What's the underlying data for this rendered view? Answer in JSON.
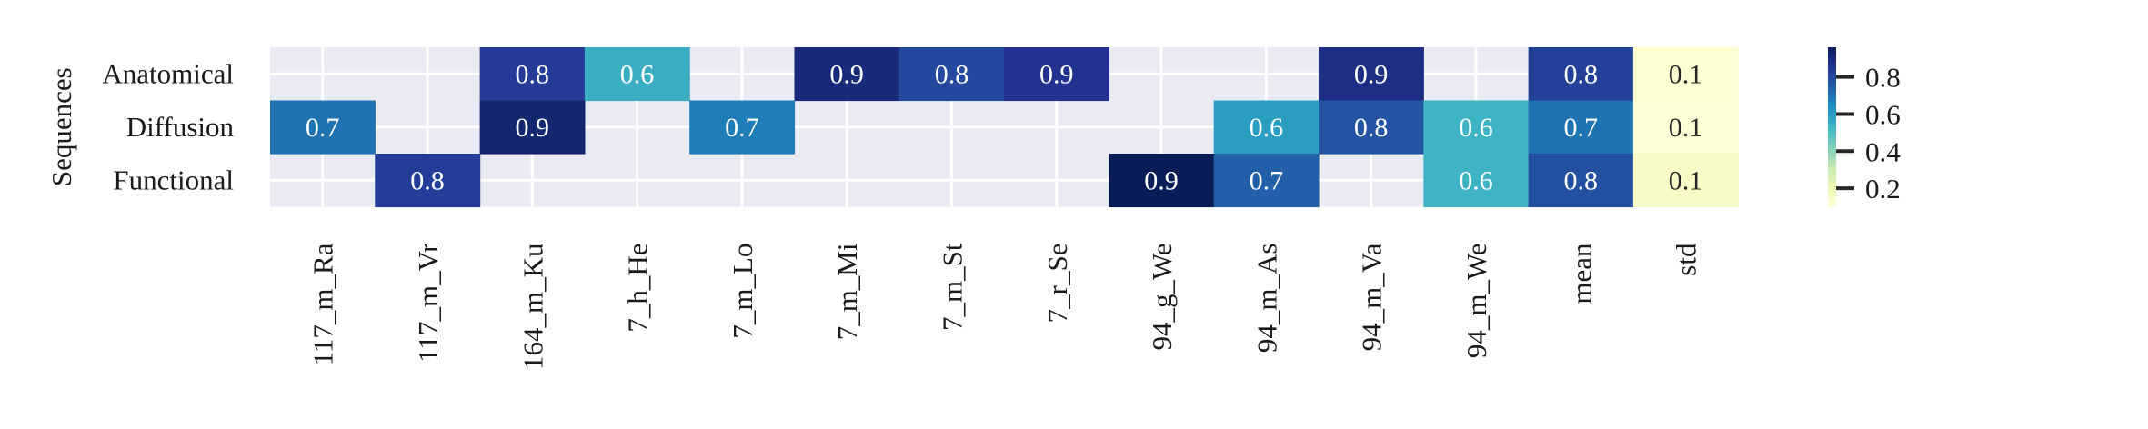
{
  "chart_data": {
    "type": "heatmap",
    "title": "",
    "ylabel": "Sequences",
    "xlabel": "",
    "rows": [
      "Anatomical",
      "Diffusion",
      "Functional"
    ],
    "columns": [
      "117_m_Ra",
      "117_m_Vr",
      "164_m_Ku",
      "7_h_He",
      "7_m_Lo",
      "7_m_Mi",
      "7_m_St",
      "7_r_Se",
      "94_g_We",
      "94_m_As",
      "94_m_Va",
      "94_m_We",
      "mean",
      "std"
    ],
    "values": [
      [
        null,
        null,
        0.8,
        0.6,
        null,
        0.9,
        0.8,
        0.9,
        null,
        null,
        0.9,
        null,
        0.8,
        0.1
      ],
      [
        0.7,
        null,
        0.9,
        null,
        0.7,
        null,
        null,
        null,
        null,
        0.6,
        0.8,
        0.6,
        0.7,
        0.1
      ],
      [
        null,
        0.8,
        null,
        null,
        null,
        null,
        null,
        null,
        0.9,
        0.7,
        null,
        0.6,
        0.8,
        0.1
      ]
    ],
    "underlying_values": [
      [
        null,
        null,
        0.84,
        0.55,
        null,
        0.9,
        0.8,
        0.86,
        null,
        null,
        0.88,
        null,
        0.82,
        0.12
      ],
      [
        0.7,
        null,
        0.92,
        null,
        0.68,
        null,
        null,
        null,
        null,
        0.6,
        0.77,
        0.54,
        0.7,
        0.11
      ],
      [
        null,
        0.83,
        null,
        null,
        null,
        null,
        null,
        null,
        0.96,
        0.74,
        null,
        0.54,
        0.78,
        0.15
      ]
    ],
    "colormap": "YlGnBu",
    "missing_color": "#eaeaf2",
    "grid": true,
    "grid_color": "#ffffff",
    "colorbar": {
      "range": [
        0.1,
        0.96
      ],
      "ticks": [
        0.8,
        0.6,
        0.4,
        0.2
      ],
      "tick_labels": [
        "0.8",
        "0.6",
        "0.4",
        "0.2"
      ],
      "position": "right"
    }
  }
}
